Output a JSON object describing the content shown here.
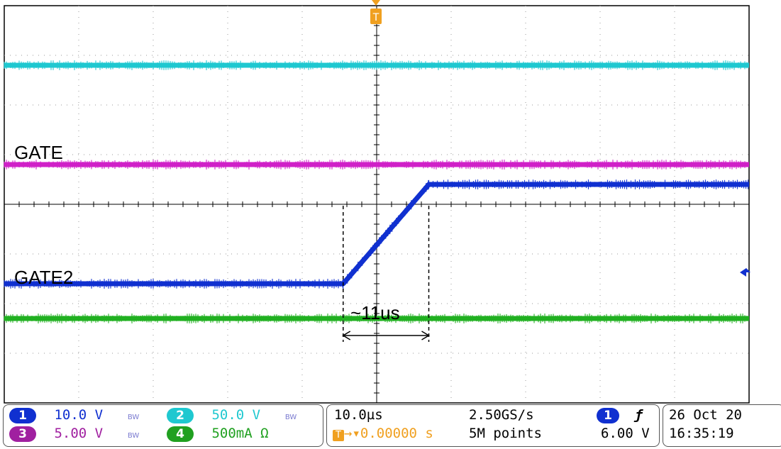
{
  "chart_data": {
    "type": "line",
    "title": "",
    "xlabel": "",
    "ylabel": "",
    "time_per_div_us": 10.0,
    "x_divisions": 10,
    "y_divisions": 8,
    "grid": true,
    "x_unit": "us",
    "x_range_us": [
      -50,
      50
    ],
    "series": [
      {
        "color": "#1fc8d0",
        "level_div": 2.8,
        "points_us": [
          [
            -50,
            2.8
          ],
          [
            50,
            2.8
          ]
        ]
      },
      {
        "label_ref": "annotations.gate",
        "color": "#d020c8",
        "level_div": 0.8,
        "points_us": [
          [
            -50,
            0.8
          ],
          [
            50,
            0.8
          ]
        ]
      },
      {
        "label_ref": "annotations.gate2",
        "color": "#1030d0",
        "points_us": [
          [
            -50,
            -1.6
          ],
          [
            -4.5,
            -1.6
          ],
          [
            7.0,
            0.4
          ],
          [
            50,
            0.4
          ]
        ]
      },
      {
        "color": "#20b020",
        "level_div": -2.3,
        "points_us": [
          [
            -50,
            -2.3
          ],
          [
            50,
            -2.3
          ]
        ]
      }
    ],
    "rise_markers_us": [
      -4.5,
      7.0
    ]
  },
  "annotations": {
    "gate": "GATE",
    "gate2": "GATE2",
    "rise_time": "~11us",
    "trigger_marker": "T"
  },
  "status": {
    "ch1": {
      "num": "1",
      "scale": "10.0 V",
      "bw": "BW",
      "color": "#1030d0"
    },
    "ch2": {
      "num": "2",
      "scale": "50.0 V",
      "bw": "BW",
      "color": "#1fc8d0"
    },
    "ch3": {
      "num": "3",
      "scale": "5.00 V",
      "bw": "BW",
      "color": "#a020a0"
    },
    "ch4": {
      "num": "4",
      "scale": "500mA Ω",
      "color": "#20a020"
    },
    "timebase": "10.0µs",
    "sample_rate": "2.50GS/s",
    "trigger_pos": "0.00000 s",
    "points": "5M points",
    "trig_ch": "1",
    "trig_slope": "ƒ",
    "trig_level": "6.00 V",
    "date": "26 Oct  20",
    "time": "16:35:19"
  }
}
